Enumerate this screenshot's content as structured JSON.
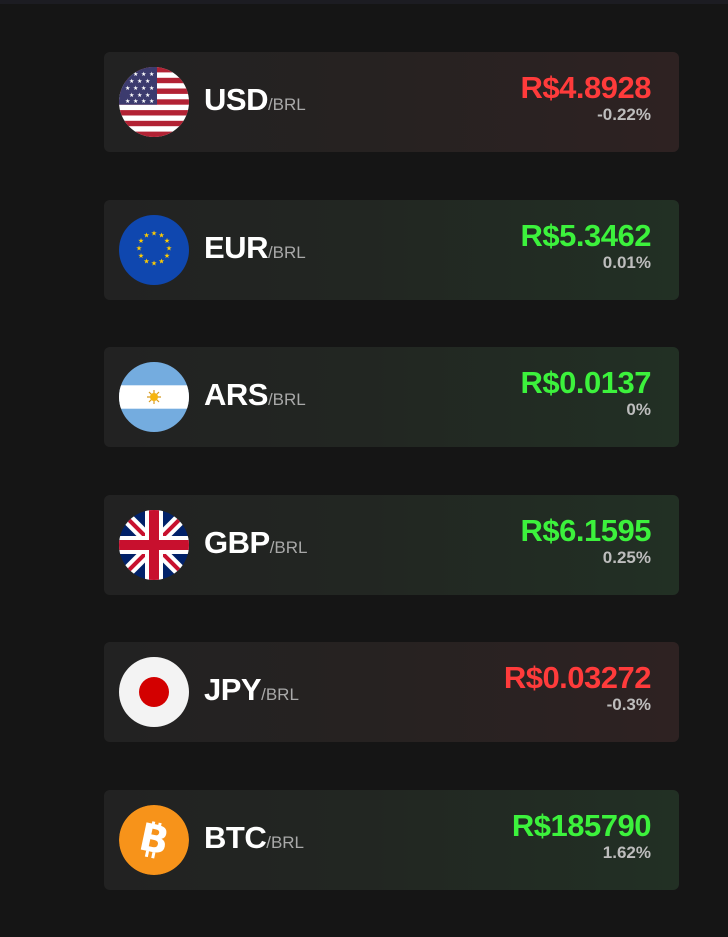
{
  "rates": [
    {
      "code": "USD",
      "quote": "/BRL",
      "price": "R$4.8928",
      "change": "-0.22%",
      "trend": "down",
      "icon": "us-flag-icon"
    },
    {
      "code": "EUR",
      "quote": "/BRL",
      "price": "R$5.3462",
      "change": "0.01%",
      "trend": "up",
      "icon": "eu-flag-icon"
    },
    {
      "code": "ARS",
      "quote": "/BRL",
      "price": "R$0.0137",
      "change": "0%",
      "trend": "up",
      "icon": "argentina-flag-icon"
    },
    {
      "code": "GBP",
      "quote": "/BRL",
      "price": "R$6.1595",
      "change": "0.25%",
      "trend": "up",
      "icon": "uk-flag-icon"
    },
    {
      "code": "JPY",
      "quote": "/BRL",
      "price": "R$0.03272",
      "change": "-0.3%",
      "trend": "down",
      "icon": "japan-flag-icon"
    },
    {
      "code": "BTC",
      "quote": "/BRL",
      "price": "R$185790",
      "change": "1.62%",
      "trend": "up",
      "icon": "bitcoin-icon"
    }
  ],
  "colors": {
    "background": "#151515",
    "down": "#ff3b3b",
    "up": "#3cf23c",
    "change_text": "#bdbdbd"
  }
}
